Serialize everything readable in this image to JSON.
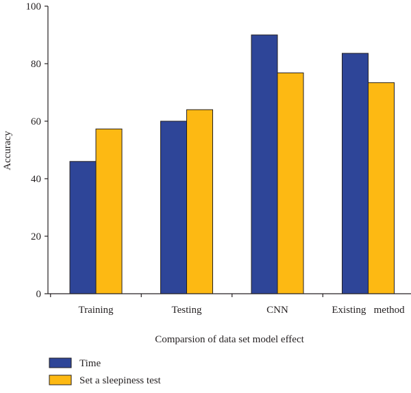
{
  "chart_data": {
    "type": "bar",
    "title": "",
    "xlabel": "Comparsion of data set model effect",
    "ylabel": "Accuracy",
    "ylim": [
      0,
      100
    ],
    "yticks": [
      0,
      20,
      40,
      60,
      80,
      100
    ],
    "categories": [
      "Training",
      "Testing",
      "CNN",
      "Existing   method"
    ],
    "series": [
      {
        "name": "Time",
        "color": "#2e4598",
        "values": [
          46,
          60,
          90,
          83.6
        ]
      },
      {
        "name": "Set a sleepiness test",
        "color": "#fdb913",
        "values": [
          57.3,
          64,
          76.8,
          73.4
        ]
      }
    ],
    "legend_position": "bottom-left",
    "grid": false
  }
}
